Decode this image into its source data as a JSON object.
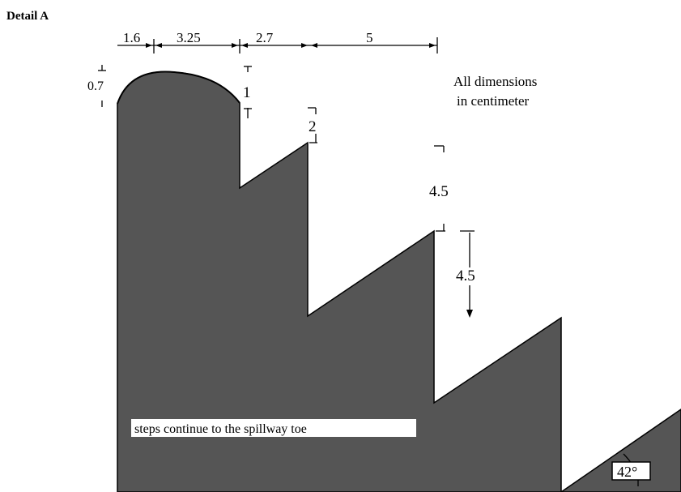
{
  "title": "Detail A",
  "note_line1": "All dimensions",
  "note_line2": "in centimeter",
  "steps_note": "steps continue to the spillway toe",
  "angle_label": "42°",
  "dimensions": {
    "top_1": "1.6",
    "top_2": "3.25",
    "top_3": "2.7",
    "top_4": "5",
    "crest_height": "0.7",
    "drop_1": "1",
    "drop_2": "2",
    "drop_3": "4.5",
    "drop_4": "4.5"
  },
  "colors": {
    "fill": "#555555",
    "outline": "#000000"
  }
}
